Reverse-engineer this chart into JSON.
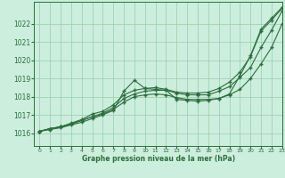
{
  "title": "Graphe pression niveau de la mer (hPa)",
  "bg_color": "#cceedd",
  "grid_color": "#99ccaa",
  "line_color": "#2d6e3e",
  "xlim": [
    -0.5,
    23
  ],
  "ylim": [
    1015.3,
    1023.2
  ],
  "yticks": [
    1016,
    1017,
    1018,
    1019,
    1020,
    1021,
    1022
  ],
  "xticks": [
    0,
    1,
    2,
    3,
    4,
    5,
    6,
    7,
    8,
    9,
    10,
    11,
    12,
    13,
    14,
    15,
    16,
    17,
    18,
    19,
    20,
    21,
    22,
    23
  ],
  "series": [
    [
      1016.1,
      1016.25,
      1016.35,
      1016.5,
      1016.7,
      1016.9,
      1017.05,
      1017.3,
      1017.7,
      1018.0,
      1018.1,
      1018.15,
      1018.1,
      1017.95,
      1017.85,
      1017.85,
      1017.85,
      1017.9,
      1018.1,
      1018.4,
      1019.0,
      1019.8,
      1020.7,
      1022.0
    ],
    [
      1016.1,
      1016.25,
      1016.35,
      1016.5,
      1016.7,
      1016.9,
      1017.1,
      1017.4,
      1017.9,
      1018.15,
      1018.3,
      1018.35,
      1018.35,
      1018.2,
      1018.1,
      1018.1,
      1018.1,
      1018.3,
      1018.55,
      1019.05,
      1019.6,
      1020.7,
      1021.65,
      1022.7
    ],
    [
      1016.1,
      1016.25,
      1016.35,
      1016.55,
      1016.75,
      1017.05,
      1017.2,
      1017.55,
      1018.1,
      1018.35,
      1018.45,
      1018.5,
      1018.4,
      1018.25,
      1018.2,
      1018.2,
      1018.25,
      1018.45,
      1018.8,
      1019.35,
      1020.2,
      1021.6,
      1022.2,
      1022.85
    ]
  ],
  "series_dip": [
    1016.1,
    1016.2,
    1016.3,
    1016.45,
    1016.6,
    1016.8,
    1017.0,
    1017.25,
    1018.3,
    1018.9,
    1018.45,
    1018.4,
    1018.35,
    1017.85,
    1017.8,
    1017.75,
    1017.8,
    1017.9,
    1018.15,
    1019.15,
    1020.25,
    1021.7,
    1022.3,
    1022.9
  ]
}
